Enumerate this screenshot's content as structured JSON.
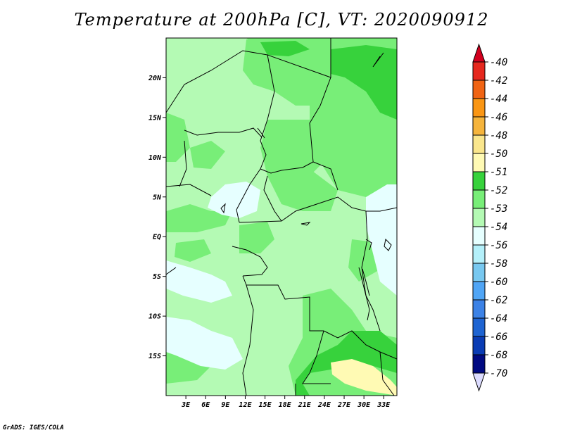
{
  "title": "Temperature at 200hPa [C], VT: 2020090912",
  "credit": "GrADS: IGES/COLA",
  "map": {
    "lon_range": [
      0,
      35
    ],
    "lat_range": [
      -20,
      25
    ],
    "lon_ticks": [
      {
        "value": 3,
        "label": "3E"
      },
      {
        "value": 6,
        "label": "6E"
      },
      {
        "value": 9,
        "label": "9E"
      },
      {
        "value": 12,
        "label": "12E"
      },
      {
        "value": 15,
        "label": "15E"
      },
      {
        "value": 18,
        "label": "18E"
      },
      {
        "value": 21,
        "label": "21E"
      },
      {
        "value": 24,
        "label": "24E"
      },
      {
        "value": 27,
        "label": "27E"
      },
      {
        "value": 30,
        "label": "30E"
      },
      {
        "value": 33,
        "label": "33E"
      }
    ],
    "lat_ticks": [
      {
        "value": 20,
        "label": "20N"
      },
      {
        "value": 15,
        "label": "15N"
      },
      {
        "value": 10,
        "label": "10N"
      },
      {
        "value": 5,
        "label": "5N"
      },
      {
        "value": 0,
        "label": "EQ"
      },
      {
        "value": -5,
        "label": "5S"
      },
      {
        "value": -10,
        "label": "10S"
      },
      {
        "value": -15,
        "label": "15S"
      }
    ]
  },
  "colorbar": {
    "levels": [
      {
        "label": "-40",
        "color": "#d2001e"
      },
      {
        "label": "-42",
        "color": "#e6281e"
      },
      {
        "label": "-44",
        "color": "#f06414"
      },
      {
        "label": "-46",
        "color": "#fa9614"
      },
      {
        "label": "-48",
        "color": "#f5b43c"
      },
      {
        "label": "-50",
        "color": "#fae68c"
      },
      {
        "label": "-51",
        "color": "#fffab4"
      },
      {
        "label": "-52",
        "color": "#37d23c"
      },
      {
        "label": "-53",
        "color": "#78ee78"
      },
      {
        "label": "-54",
        "color": "#b4fab4"
      },
      {
        "label": "-56",
        "color": "#e6ffff"
      },
      {
        "label": "-58",
        "color": "#b4f0fa"
      },
      {
        "label": "-60",
        "color": "#78c8f0"
      },
      {
        "label": "-62",
        "color": "#50a5f5"
      },
      {
        "label": "-64",
        "color": "#3c82e6"
      },
      {
        "label": "-66",
        "color": "#1e64d2"
      },
      {
        "label": "-68",
        "color": "#0a3cb4"
      },
      {
        "label": "-70",
        "color": "#000a82"
      }
    ],
    "under_color": "#dcdcff"
  },
  "palette": {
    "light_green": "#b4fab4",
    "mid_green": "#78ee78",
    "dark_green": "#37d23c",
    "pale_cyan": "#e6ffff",
    "pale_yellow": "#fffab4"
  }
}
